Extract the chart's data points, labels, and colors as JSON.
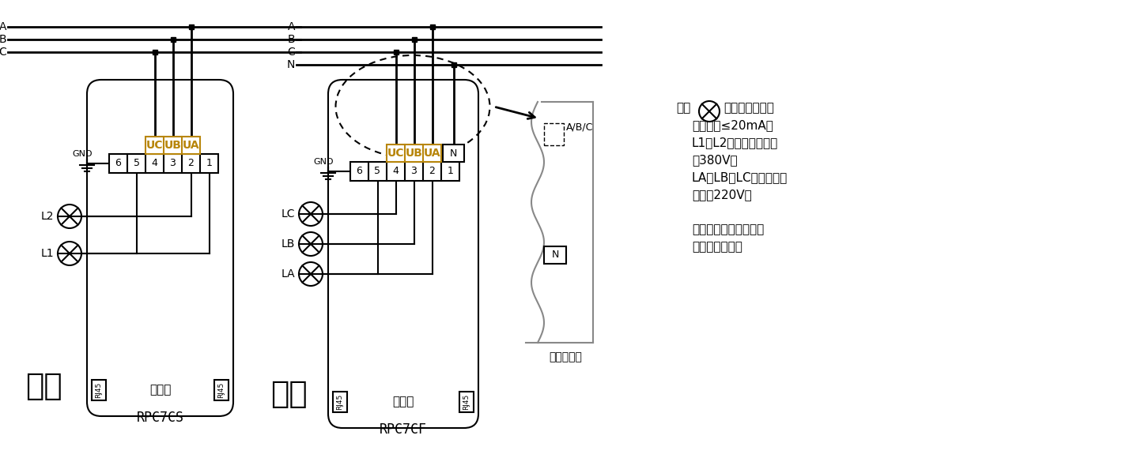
{
  "bg_color": "#ffffff",
  "line_color": "#000000",
  "gold_color": "#b8860b",
  "gray_color": "#888888",
  "title1": "共补",
  "title2": "分补",
  "model1": "RPC7CS",
  "model2": "RPC7CF",
  "top_view": "俧视图",
  "side_view_label": "側视局部图",
  "gnd_label": "GND",
  "rj45": "RJ45",
  "n_label": "N",
  "abc_label": "A/B/C",
  "note_zhu": "注：",
  "note_line1": "为外接指示灯，",
  "note_line2": "工作电流≤20mA。",
  "note_line3": "L1与L2指示灯额定电压",
  "note_line4": "为380V。",
  "note_line5": "LA、LB、LC指示灯额定",
  "note_line6": "电压为220V。",
  "note_line7": "",
  "note_line8": "外接指示灯可根据需要",
  "note_line9": "接或不接都可。",
  "bus_labels_left": [
    "A",
    "B",
    "C"
  ],
  "bus_labels_right": [
    "A",
    "B",
    "C",
    "N"
  ],
  "term_labels": [
    "6",
    "5",
    "4",
    "3",
    "2",
    "1"
  ],
  "uc_labels": [
    "UC",
    "UB",
    "UA"
  ],
  "lamp_labels_left": [
    "L2",
    "L1"
  ],
  "lamp_labels_right": [
    "LC",
    "LB",
    "LA"
  ]
}
